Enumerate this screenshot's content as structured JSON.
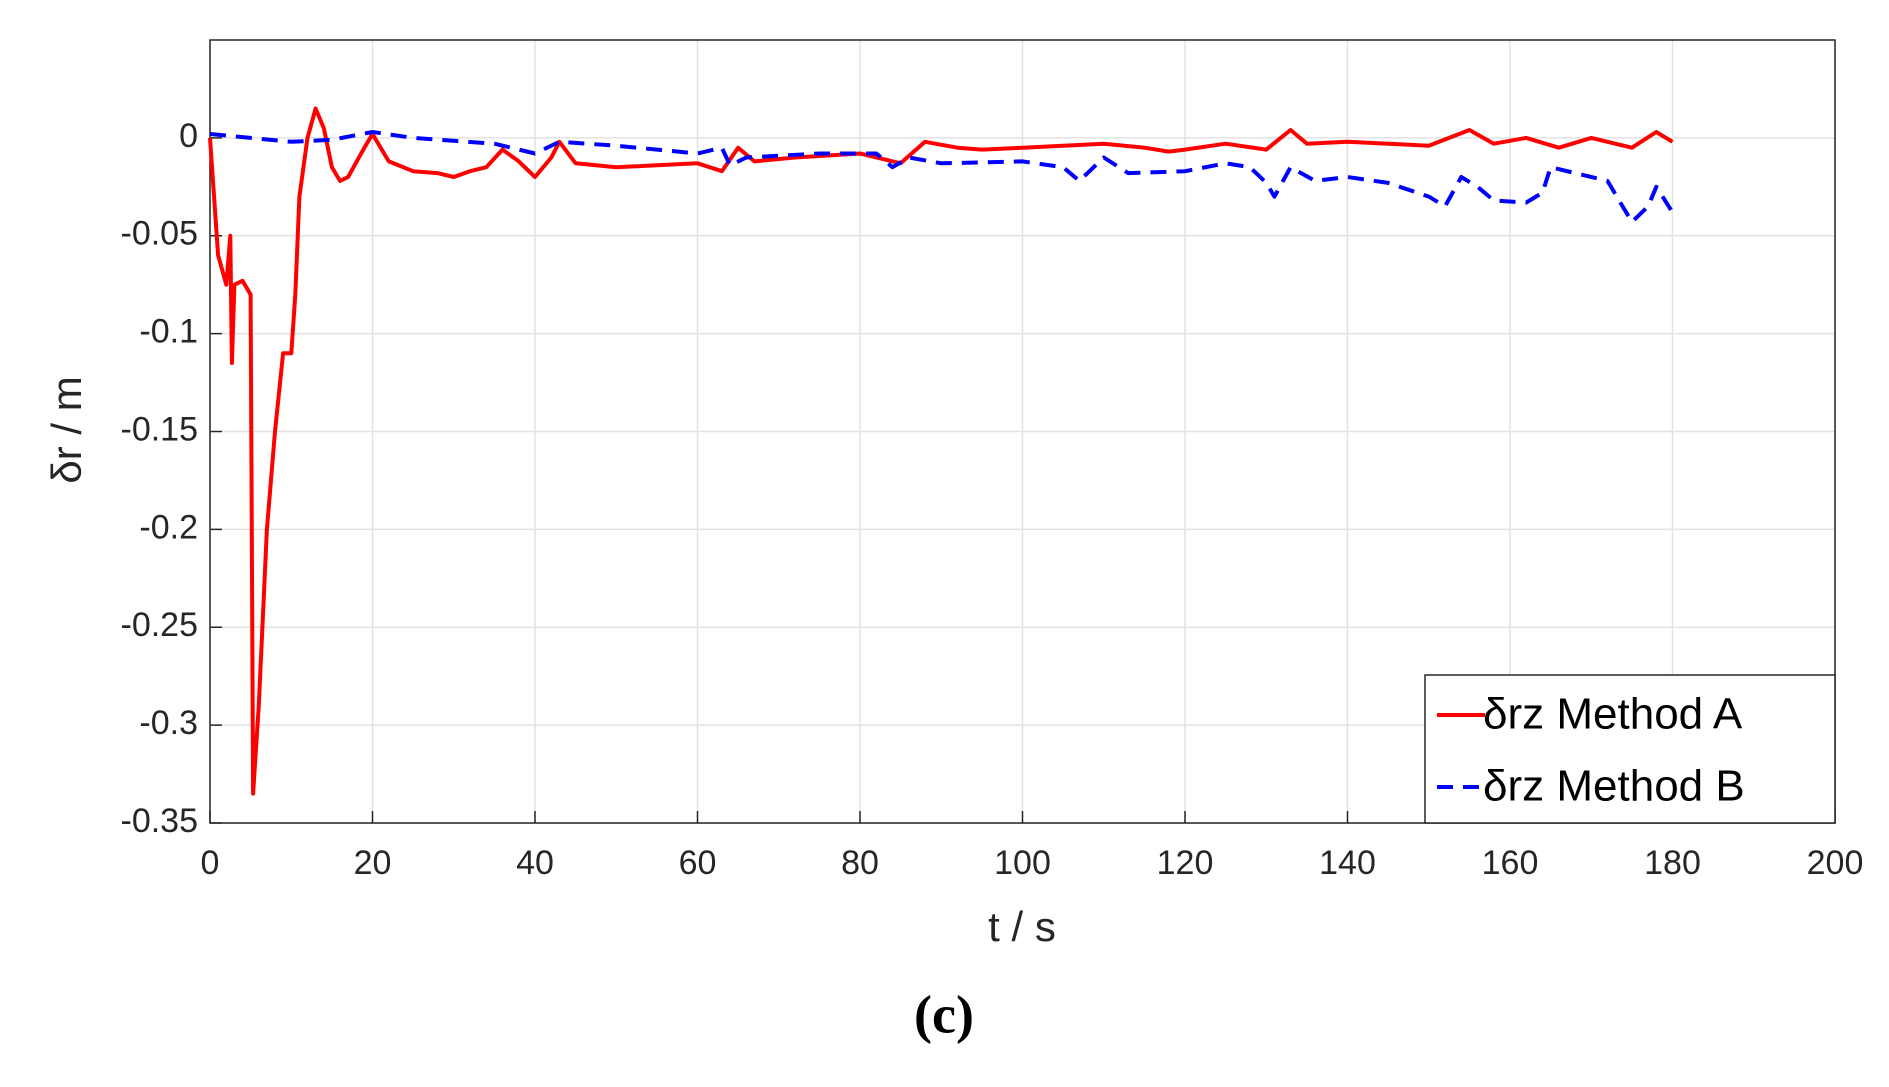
{
  "chart_data": {
    "type": "line",
    "title": "(c)",
    "xlabel": "t / s",
    "ylabel": "δr / m",
    "xlim": [
      0,
      200
    ],
    "xticks": [
      0,
      20,
      40,
      60,
      80,
      100,
      120,
      140,
      160,
      180,
      200
    ],
    "ylim": [
      -0.35,
      0.05
    ],
    "yticks": [
      0,
      -0.05,
      -0.1,
      -0.15,
      -0.2,
      -0.25,
      -0.3,
      -0.35
    ],
    "grid": true,
    "legend": "lower right",
    "series": [
      {
        "name": "δrz Method A",
        "color": "#ff0000",
        "style": "solid",
        "x": [
          0,
          1,
          2,
          2.5,
          2.7,
          3,
          4,
          5,
          5.3,
          6,
          7,
          8,
          9,
          10,
          10.5,
          11,
          12,
          13,
          14,
          15,
          16,
          17,
          19,
          20,
          22,
          25,
          28,
          30,
          32,
          34,
          36,
          38,
          40,
          42,
          43,
          45,
          50,
          55,
          60,
          63,
          65,
          67,
          72,
          80,
          85,
          88,
          92,
          95,
          100,
          105,
          110,
          115,
          118,
          120,
          125,
          130,
          133,
          135,
          140,
          145,
          150,
          155,
          158,
          162,
          166,
          170,
          175,
          178,
          180
        ],
        "values": [
          0,
          -0.06,
          -0.075,
          -0.05,
          -0.115,
          -0.075,
          -0.073,
          -0.08,
          -0.335,
          -0.29,
          -0.2,
          -0.15,
          -0.11,
          -0.11,
          -0.08,
          -0.03,
          0,
          0.015,
          0.005,
          -0.015,
          -0.022,
          -0.02,
          -0.005,
          0.002,
          -0.012,
          -0.017,
          -0.018,
          -0.02,
          -0.017,
          -0.015,
          -0.006,
          -0.012,
          -0.02,
          -0.01,
          -0.002,
          -0.013,
          -0.015,
          -0.014,
          -0.013,
          -0.017,
          -0.005,
          -0.012,
          -0.01,
          -0.008,
          -0.013,
          -0.002,
          -0.005,
          -0.006,
          -0.005,
          -0.004,
          -0.003,
          -0.005,
          -0.007,
          -0.006,
          -0.003,
          -0.006,
          0.004,
          -0.003,
          -0.002,
          -0.003,
          -0.004,
          0.004,
          -0.003,
          0,
          -0.005,
          0,
          -0.005,
          0.003,
          -0.002
        ]
      },
      {
        "name": "δrz Method B",
        "color": "#0000ff",
        "style": "dashed",
        "x": [
          0,
          10,
          15,
          20,
          25,
          35,
          40,
          43,
          50,
          60,
          63,
          64,
          66,
          75,
          82,
          84,
          86,
          90,
          100,
          105,
          107,
          110,
          113,
          120,
          125,
          128,
          130,
          131,
          133,
          136,
          140,
          145,
          150,
          152,
          154,
          156,
          158,
          162,
          164,
          165,
          168,
          172,
          175,
          177,
          178,
          180
        ],
        "values": [
          0.002,
          -0.002,
          -0.001,
          0.003,
          0,
          -0.003,
          -0.008,
          -0.002,
          -0.004,
          -0.008,
          -0.005,
          -0.014,
          -0.01,
          -0.008,
          -0.008,
          -0.015,
          -0.01,
          -0.013,
          -0.012,
          -0.015,
          -0.022,
          -0.01,
          -0.018,
          -0.017,
          -0.013,
          -0.015,
          -0.023,
          -0.03,
          -0.015,
          -0.022,
          -0.02,
          -0.023,
          -0.03,
          -0.035,
          -0.02,
          -0.025,
          -0.032,
          -0.033,
          -0.028,
          -0.015,
          -0.018,
          -0.022,
          -0.043,
          -0.035,
          -0.025,
          -0.038
        ]
      }
    ]
  }
}
